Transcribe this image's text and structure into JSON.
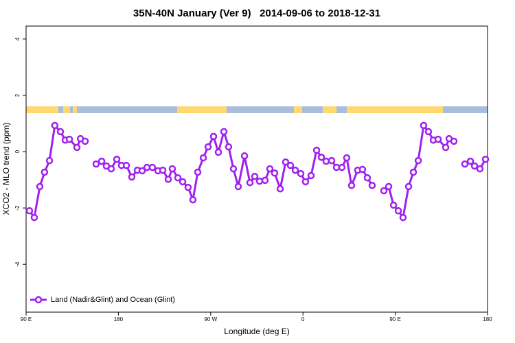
{
  "chart_data": {
    "type": "line",
    "title": "35N-40N January (Ver 9)   2014-09-06 to 2018-12-31",
    "xlabel": "Longitude (deg E)",
    "ylabel": "XCO2 - MLO trend (ppm)",
    "xlim": [
      90,
      540
    ],
    "ylim": [
      -5.7,
      4.46
    ],
    "xticks": [
      {
        "value": 90,
        "label": "90 E"
      },
      180,
      {
        "value": 270,
        "label": "90 W"
      },
      {
        "value": 360,
        "label": "0"
      },
      {
        "value": 450,
        "label": "90 E"
      },
      {
        "value": 540,
        "label": "180"
      }
    ],
    "yticks": [
      -4,
      -2,
      0,
      2,
      4
    ],
    "legend": "bottom-left",
    "series": [
      {
        "name": "Land (Nadir&Glint) and Ocean (Glint)",
        "color": "#a020f0",
        "x": [
          93.3,
          98,
          103.4,
          108,
          112.8,
          118,
          123.5,
          128.2,
          132.2,
          139.6,
          143,
          147.6,
          null,
          158.3,
          163.7,
          168.3,
          173,
          178.4,
          183,
          187.8,
          193.1,
          198.5,
          203.2,
          207.9,
          213.2,
          218.6,
          223.3,
          228.6,
          232.6,
          238,
          242.7,
          248,
          252.7,
          257.4,
          262.8,
          267.5,
          272.8,
          277.5,
          282.9,
          287.5,
          292.2,
          296.9,
          303,
          308.3,
          313,
          317.7,
          323,
          327.7,
          332.4,
          337.8,
          343.1,
          347.8,
          352.5,
          357.9,
          362.5,
          367.9,
          373.3,
          378,
          382.6,
          388,
          392.7,
          398,
          402.7,
          407.4,
          413.4,
          418.1,
          422.8,
          427.5,
          null,
          438.9,
          443.6,
          448.3,
          453,
          457.6,
          463,
          467.7,
          472.4,
          477.7,
          482.4,
          487.1,
          491.8,
          499.2,
          502.5,
          507.2,
          null,
          517.9,
          523.3,
          527.3,
          532.6,
          538
        ],
        "values": [
          -2.1,
          -2.34,
          -1.24,
          -0.73,
          -0.32,
          0.93,
          0.71,
          0.41,
          0.44,
          0.15,
          0.46,
          0.37,
          null,
          -0.44,
          -0.34,
          -0.51,
          -0.61,
          -0.27,
          -0.49,
          -0.49,
          -0.9,
          -0.66,
          -0.68,
          -0.56,
          -0.56,
          -0.68,
          -0.66,
          -0.98,
          -0.61,
          -0.93,
          -1.07,
          -1.27,
          -1.71,
          -0.73,
          -0.22,
          0.17,
          0.54,
          -0.02,
          0.71,
          0.17,
          -0.61,
          -1.24,
          -0.15,
          -1.1,
          -0.88,
          -1.05,
          -1.02,
          -0.61,
          -0.76,
          -1.32,
          -0.37,
          -0.49,
          -0.66,
          -0.78,
          -1.07,
          -0.85,
          0.05,
          -0.2,
          -0.34,
          -0.32,
          -0.56,
          -0.56,
          -0.22,
          -1.2,
          -0.66,
          -0.63,
          -0.93,
          -1.2,
          null,
          -1.39,
          -1.24,
          -1.9,
          -2.1,
          -2.34,
          -1.24,
          -0.73,
          -0.32,
          0.93,
          0.71,
          0.41,
          0.44,
          0.15,
          0.46,
          0.37,
          null,
          -0.44,
          -0.34,
          -0.51,
          -0.61,
          -0.27
        ]
      }
    ]
  }
}
